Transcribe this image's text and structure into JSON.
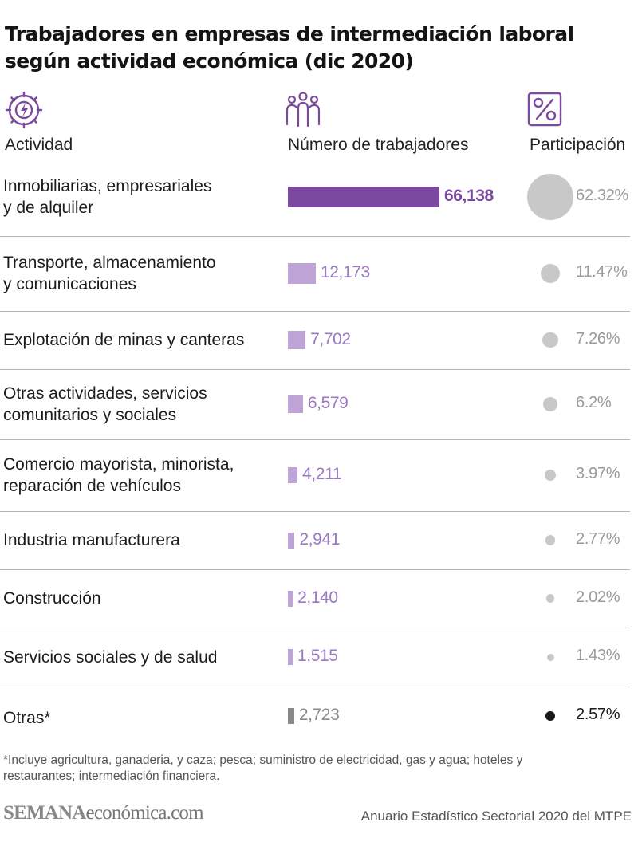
{
  "title": "Trabajadores en empresas de intermediación laboral según actividad económica (dic 2020)",
  "headers": {
    "activity": "Actividad",
    "workers": "Número de trabajadores",
    "share": "Participación",
    "activity_icon": "gear-lightning-icon",
    "workers_icon": "people-group-icon",
    "share_icon": "percent-icon"
  },
  "colors": {
    "accent": "#7b4a9f",
    "bar_light": "#bea3d6",
    "bar_other": "#8a8a8a",
    "bubble_gray": "#c8c8c8",
    "bubble_dark": "#1a1a1a",
    "divider": "#b5b5b5"
  },
  "chart_data": {
    "type": "table",
    "title": "Trabajadores en empresas de intermediación laboral según actividad económica (dic 2020)",
    "columns": [
      "Actividad",
      "Número de trabajadores",
      "Participación"
    ],
    "rows": [
      {
        "lines": [
          "Inmobiliarias, empresariales",
          "y de alquiler"
        ],
        "value": 66138,
        "value_label": "66,138",
        "share": 62.32,
        "share_label": "62.32%"
      },
      {
        "lines": [
          "Transporte, almacenamiento",
          "y comunicaciones"
        ],
        "value": 12173,
        "value_label": "12,173",
        "share": 11.47,
        "share_label": "11.47%"
      },
      {
        "lines": [
          "Explotación de minas y canteras"
        ],
        "value": 7702,
        "value_label": "7,702",
        "share": 7.26,
        "share_label": "7.26%"
      },
      {
        "lines": [
          "Otras actividades, servicios",
          "comunitarios y sociales"
        ],
        "value": 6579,
        "value_label": "6,579",
        "share": 6.2,
        "share_label": "6.2%"
      },
      {
        "lines": [
          "Comercio mayorista, minorista,",
          "reparación de vehículos"
        ],
        "value": 4211,
        "value_label": "4,211",
        "share": 3.97,
        "share_label": "3.97%"
      },
      {
        "lines": [
          "Industria manufacturera"
        ],
        "value": 2941,
        "value_label": "2,941",
        "share": 2.77,
        "share_label": "2.77%"
      },
      {
        "lines": [
          "Construcción"
        ],
        "value": 2140,
        "value_label": "2,140",
        "share": 2.02,
        "share_label": "2.02%"
      },
      {
        "lines": [
          "Servicios sociales y de salud"
        ],
        "value": 1515,
        "value_label": "1,515",
        "share": 1.43,
        "share_label": "1.43%"
      },
      {
        "lines": [
          "Otras*"
        ],
        "value": 2723,
        "value_label": "2,723",
        "share": 2.57,
        "share_label": "2.57%"
      }
    ]
  },
  "footnote": "*Incluye agricultura, ganaderia, y caza; pesca; suministro de electricidad, gas y agua; hoteles y restaurantes; intermediación financiera.",
  "brand": {
    "bold": "SEMANA",
    "light": "económica.com"
  },
  "source": "Anuario Estadístico Sectorial  2020 del MTPE"
}
